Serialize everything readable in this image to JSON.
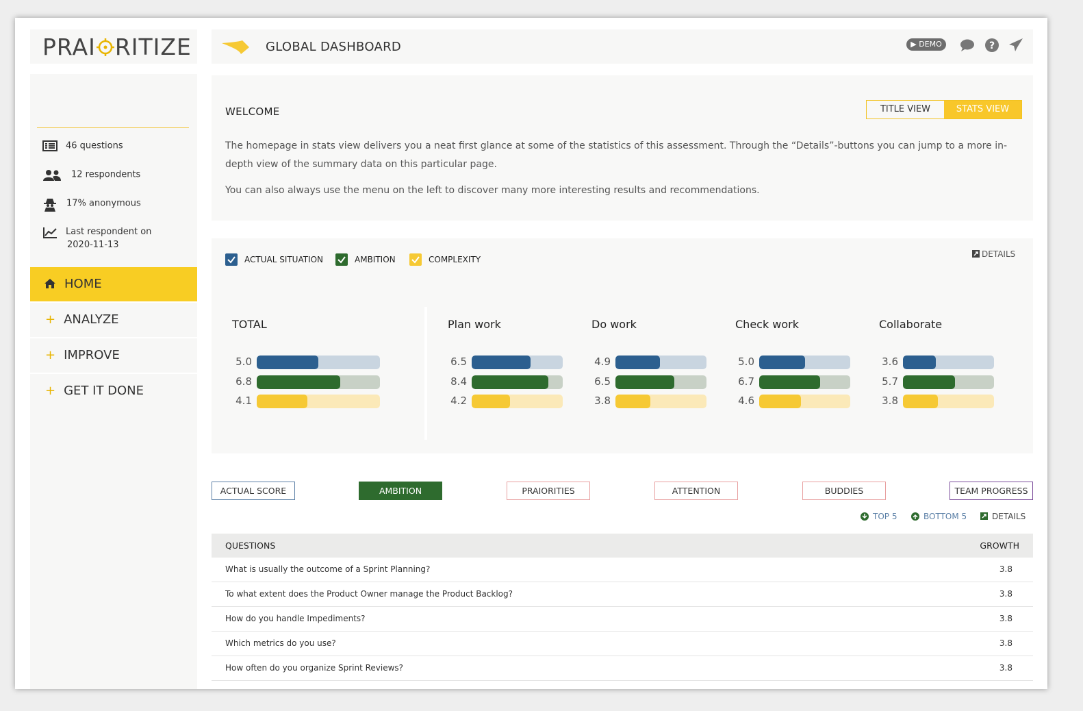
{
  "app": {
    "logo_part1": "PRAI",
    "logo_part2": "RITIZE",
    "page_title": "GLOBAL DASHBOARD",
    "demo_badge": "▶ DEMO"
  },
  "sidebar": {
    "stats": [
      {
        "icon": "list-icon",
        "text": "46 questions"
      },
      {
        "icon": "users-icon",
        "text": "12 respondents"
      },
      {
        "icon": "spy-icon",
        "text": "17% anonymous"
      },
      {
        "icon": "chart-line-icon",
        "text": "Last respondent on",
        "text2": "2020-11-13"
      }
    ],
    "nav": [
      {
        "label": "HOME",
        "icon": "home-icon",
        "active": true
      },
      {
        "label": "ANALYZE",
        "icon": "plus-icon"
      },
      {
        "label": "IMPROVE",
        "icon": "plus-icon"
      },
      {
        "label": "GET IT DONE",
        "icon": "plus-icon"
      }
    ]
  },
  "welcome": {
    "title": "WELCOME",
    "toggle": {
      "title_view": "TITLE VIEW",
      "stats_view": "STATS VIEW",
      "active": "stats_view"
    },
    "paragraph1": "The homepage in stats view delivers you a neat first glance at some of the statistics of this assessment. Through the “Details”-buttons you can jump to a more in-depth view of the summary data on this particular page.",
    "paragraph2": "You can also always use the menu on the left to discover many more interesting results and recommendations."
  },
  "stats": {
    "legend": [
      {
        "label": "ACTUAL SITUATION",
        "color": "#2c5f8f"
      },
      {
        "label": "AMBITION",
        "color": "#2e6b2e"
      },
      {
        "label": "COMPLEXITY",
        "color": "#f6c934"
      }
    ],
    "details": "DETAILS",
    "scale_max": 10,
    "colors": {
      "actual": {
        "fill": "#2c5f8f",
        "track": "#c9d5e0"
      },
      "ambition": {
        "fill": "#2e6b2e",
        "track": "#c8d1c6"
      },
      "complexity": {
        "fill": "#f6c934",
        "track": "#fbe9b8"
      }
    },
    "groups": [
      {
        "title": "TOTAL",
        "actual": "5.0",
        "ambition": "6.8",
        "complexity": "4.1"
      },
      {
        "title": "Plan work",
        "actual": "6.5",
        "ambition": "8.4",
        "complexity": "4.2"
      },
      {
        "title": "Do work",
        "actual": "4.9",
        "ambition": "6.5",
        "complexity": "3.8"
      },
      {
        "title": "Check work",
        "actual": "5.0",
        "ambition": "6.7",
        "complexity": "4.6"
      },
      {
        "title": "Collaborate",
        "actual": "3.6",
        "ambition": "5.7",
        "complexity": "3.8"
      }
    ]
  },
  "tabs": [
    {
      "label": "ACTUAL SCORE",
      "color": "#5a7fa6",
      "active": false
    },
    {
      "label": "AMBITION",
      "color": "#2e6b2e",
      "active": true
    },
    {
      "label": "PRAIORITIES",
      "color": "#e8a0a0",
      "active": false
    },
    {
      "label": "ATTENTION",
      "color": "#e8a0a0",
      "active": false
    },
    {
      "label": "BUDDIES",
      "color": "#e8a0a0",
      "active": false
    },
    {
      "label": "TEAM PROGRESS",
      "color": "#7a4a9a",
      "active": false
    }
  ],
  "table_links": {
    "top5": "TOP 5",
    "bottom5": "BOTTOM 5",
    "details": "DETAILS"
  },
  "table": {
    "headers": {
      "questions": "QUESTIONS",
      "growth": "GROWTH"
    },
    "rows": [
      {
        "q": "What is usually the outcome of a Sprint Planning?",
        "g": "3.8"
      },
      {
        "q": "To what extent does the Product Owner manage the Product Backlog?",
        "g": "3.8"
      },
      {
        "q": "How do you handle Impediments?",
        "g": "3.8"
      },
      {
        "q": "Which metrics do you use?",
        "g": "3.8"
      },
      {
        "q": "How often do you organize Sprint Reviews?",
        "g": "3.8"
      }
    ]
  }
}
